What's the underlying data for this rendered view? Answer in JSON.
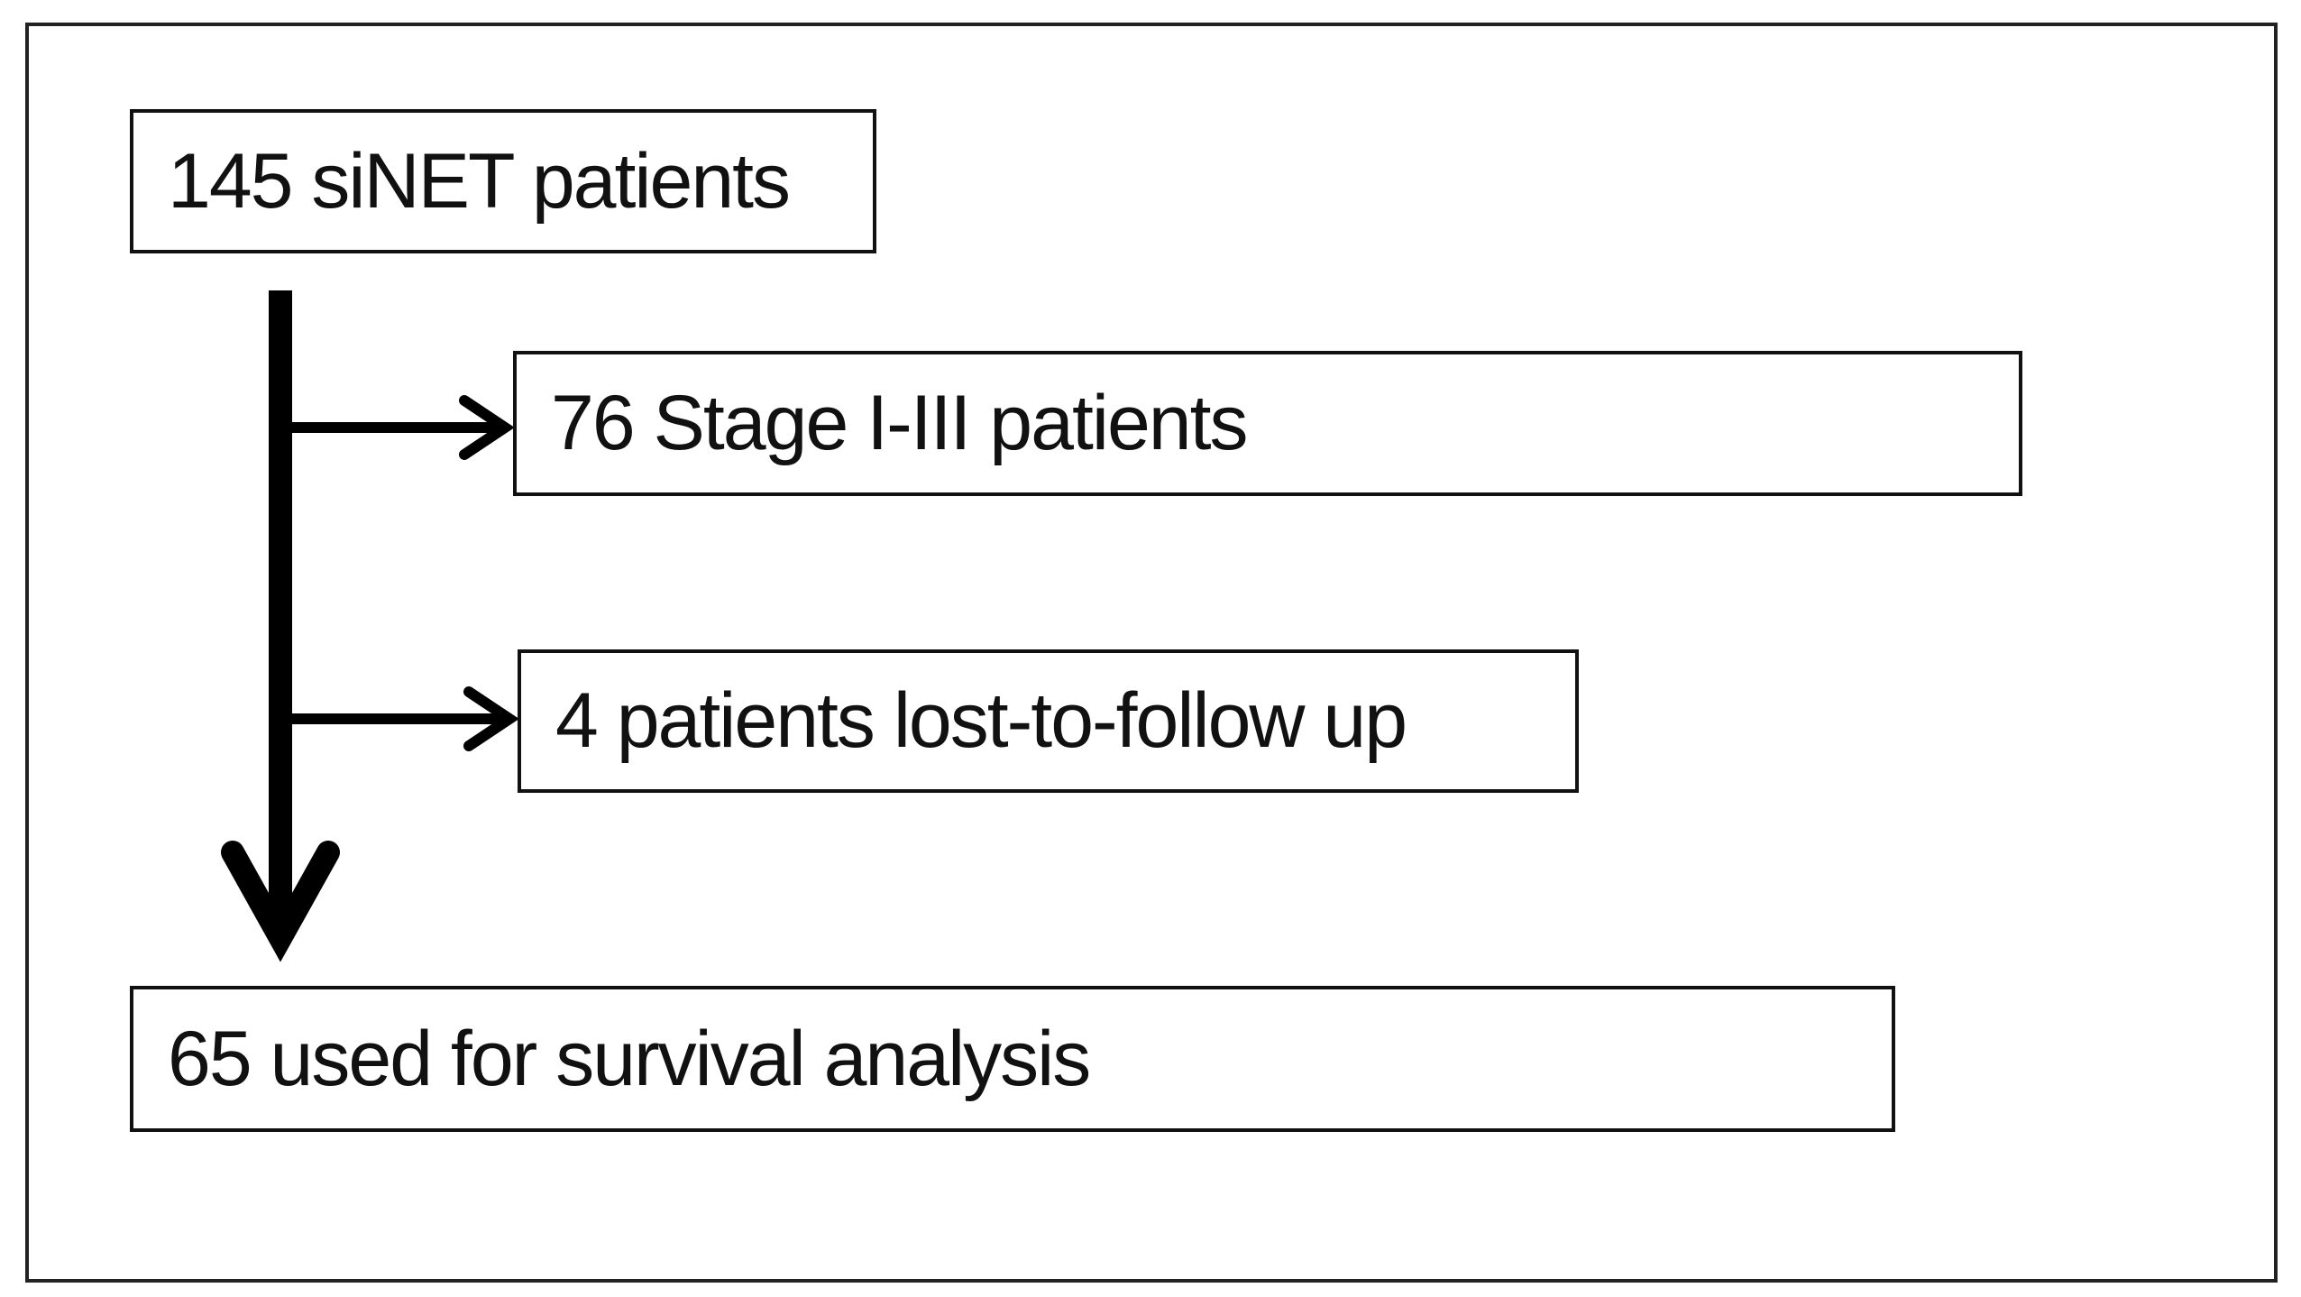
{
  "diagram": {
    "boxes": {
      "start": "145 siNET patients",
      "excluded_stage": "76 Stage I-III patients",
      "excluded_lost": "4 patients lost-to-follow up",
      "final": "65 used for survival analysis"
    },
    "line_color": "#000000"
  }
}
